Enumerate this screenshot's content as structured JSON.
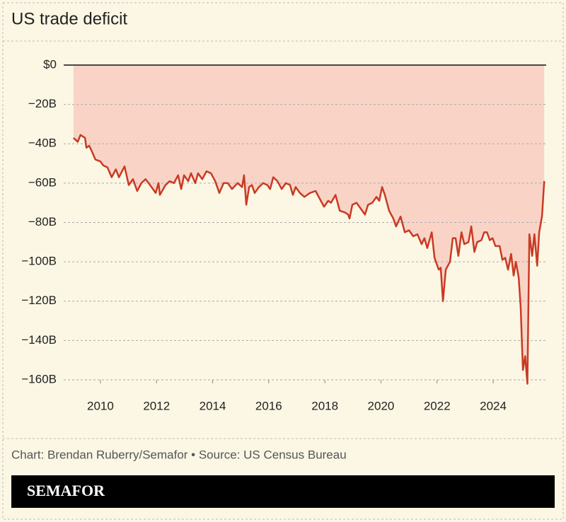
{
  "chart_data": {
    "type": "area-line",
    "title": "US trade deficit",
    "x": [
      2009.04,
      2009.19,
      2009.29,
      2009.45,
      2009.5,
      2009.6,
      2009.7,
      2009.82,
      2010.0,
      2010.1,
      2010.25,
      2010.4,
      2010.55,
      2010.66,
      2010.86,
      2011.01,
      2011.16,
      2011.31,
      2011.46,
      2011.61,
      2011.82,
      2011.97,
      2012.07,
      2012.12,
      2012.32,
      2012.47,
      2012.62,
      2012.77,
      2012.88,
      2012.98,
      2013.13,
      2013.23,
      2013.38,
      2013.48,
      2013.63,
      2013.78,
      2013.94,
      2014.09,
      2014.24,
      2014.39,
      2014.54,
      2014.69,
      2014.89,
      2015.05,
      2015.12,
      2015.2,
      2015.3,
      2015.4,
      2015.5,
      2015.65,
      2015.8,
      2015.95,
      2016.05,
      2016.16,
      2016.31,
      2016.46,
      2016.61,
      2016.76,
      2016.86,
      2016.96,
      2017.11,
      2017.27,
      2017.47,
      2017.67,
      2017.82,
      2017.97,
      2018.12,
      2018.22,
      2018.38,
      2018.53,
      2018.73,
      2018.83,
      2018.88,
      2018.98,
      2019.13,
      2019.28,
      2019.43,
      2019.54,
      2019.69,
      2019.84,
      2019.94,
      2020.04,
      2020.14,
      2020.29,
      2020.44,
      2020.54,
      2020.7,
      2020.85,
      2021.0,
      2021.15,
      2021.3,
      2021.45,
      2021.55,
      2021.65,
      2021.81,
      2021.91,
      2022.06,
      2022.13,
      2022.21,
      2022.31,
      2022.46,
      2022.56,
      2022.66,
      2022.76,
      2022.87,
      2022.97,
      2023.12,
      2023.22,
      2023.33,
      2023.43,
      2023.58,
      2023.68,
      2023.78,
      2023.88,
      2023.98,
      2024.08,
      2024.23,
      2024.33,
      2024.43,
      2024.53,
      2024.64,
      2024.73,
      2024.81,
      2024.91,
      2024.98,
      2025.06,
      2025.14,
      2025.22,
      2025.29,
      2025.39,
      2025.47,
      2025.57,
      2025.64,
      2025.74,
      2025.82
    ],
    "values": [
      -37,
      -39,
      -35.5,
      -37,
      -42,
      -41,
      -44,
      -48,
      -49,
      -51,
      -52,
      -57,
      -53,
      -57,
      -51.5,
      -61,
      -58,
      -64,
      -60,
      -58,
      -62,
      -65,
      -60,
      -66,
      -61,
      -59,
      -60,
      -56,
      -63,
      -56,
      -59,
      -55,
      -60,
      -55,
      -58,
      -54,
      -55,
      -59,
      -65,
      -60,
      -60,
      -63,
      -60,
      -62,
      -56,
      -71,
      -62,
      -61,
      -65,
      -62,
      -60,
      -61,
      -63,
      -57,
      -59,
      -63,
      -60,
      -61,
      -66,
      -62,
      -65,
      -67,
      -65,
      -64,
      -68,
      -72,
      -69,
      -70,
      -66,
      -74,
      -75,
      -76,
      -78,
      -71,
      -70,
      -73,
      -76,
      -71,
      -70,
      -67,
      -69,
      -62,
      -66,
      -74,
      -78,
      -82,
      -77,
      -85,
      -84,
      -87,
      -86,
      -91,
      -88,
      -93,
      -85,
      -98,
      -104,
      -103,
      -120,
      -104,
      -100,
      -88,
      -88,
      -97,
      -85,
      -91,
      -90,
      -82,
      -95,
      -90,
      -89,
      -85,
      -85,
      -89,
      -88,
      -92,
      -92,
      -99,
      -98,
      -104,
      -96,
      -107,
      -100,
      -108,
      -123,
      -155,
      -148,
      -162,
      -86,
      -97,
      -86,
      -102,
      -85,
      -77,
      -59
    ],
    "color": "#c93a24",
    "fill_color": "#f9d4c6",
    "xlim": [
      2008.69,
      2025.89
    ],
    "xticks": [
      2010,
      2012,
      2014,
      2016,
      2018,
      2020,
      2022,
      2024
    ],
    "ylim": [
      -160,
      0
    ],
    "yticks": [
      {
        "value": 0,
        "label": "$0"
      },
      {
        "value": -20,
        "label": "−20B"
      },
      {
        "value": -40,
        "label": "−40B"
      },
      {
        "value": -60,
        "label": "−60B"
      },
      {
        "value": -80,
        "label": "−80B"
      },
      {
        "value": -100,
        "label": "−100B"
      },
      {
        "value": -120,
        "label": "−120B"
      },
      {
        "value": -140,
        "label": "−140B"
      },
      {
        "value": -160,
        "label": "−160B"
      }
    ],
    "grid": true
  },
  "footer": {
    "credit": "Chart: Brendan Ruberry/Semafor • Source: US Census Bureau",
    "brand": "SEMAFOR"
  }
}
